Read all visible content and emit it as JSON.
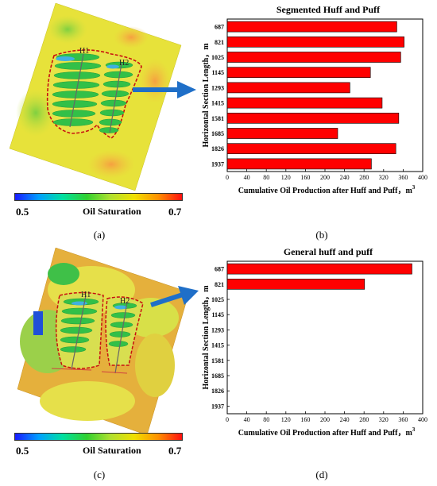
{
  "colorbar": {
    "min_label": "0.5",
    "title": "Oil Saturation",
    "max_label": "0.7"
  },
  "maps": {
    "top": {
      "well1": "H1",
      "well2": "H2"
    },
    "bottom": {
      "well1": "H1",
      "well2": "H2"
    }
  },
  "captions": [
    "(a)",
    "(b)",
    "(c)",
    "(d)"
  ],
  "colors": {
    "bar": "#ff0000",
    "arrow": "#1f6fc8",
    "boundary": "#c81010"
  },
  "chart_data": [
    {
      "type": "bar",
      "orientation": "horizontal",
      "title": "Segmented Huff and Puff",
      "ylabel": "Horizontal Section Length，m",
      "xlabel": "Cumulative Oil Production after Huff and Puff，m",
      "xlabel_sup": "3",
      "categories": [
        "687",
        "821",
        "1025",
        "1145",
        "1293",
        "1415",
        "1581",
        "1685",
        "1826",
        "1937"
      ],
      "values": [
        347,
        362,
        355,
        293,
        251,
        317,
        351,
        226,
        345,
        295
      ],
      "xlim": [
        0,
        400
      ],
      "xticks": [
        "0",
        "40",
        "80",
        "120",
        "160",
        "200",
        "240",
        "280",
        "320",
        "360",
        "400"
      ]
    },
    {
      "type": "bar",
      "orientation": "horizontal",
      "title": "General huff and puff",
      "ylabel": "Horizontal Section Length，m",
      "xlabel": "Cumulative Oil Production after Huff and Puff，m",
      "xlabel_sup": "3",
      "categories": [
        "687",
        "821",
        "1025",
        "1145",
        "1293",
        "1415",
        "1581",
        "1685",
        "1826",
        "1937"
      ],
      "values": [
        378,
        281,
        null,
        null,
        null,
        null,
        null,
        null,
        null,
        null
      ],
      "xlim": [
        0,
        400
      ],
      "xticks": [
        "0",
        "40",
        "80",
        "120",
        "160",
        "200",
        "240",
        "280",
        "320",
        "360",
        "400"
      ]
    }
  ]
}
